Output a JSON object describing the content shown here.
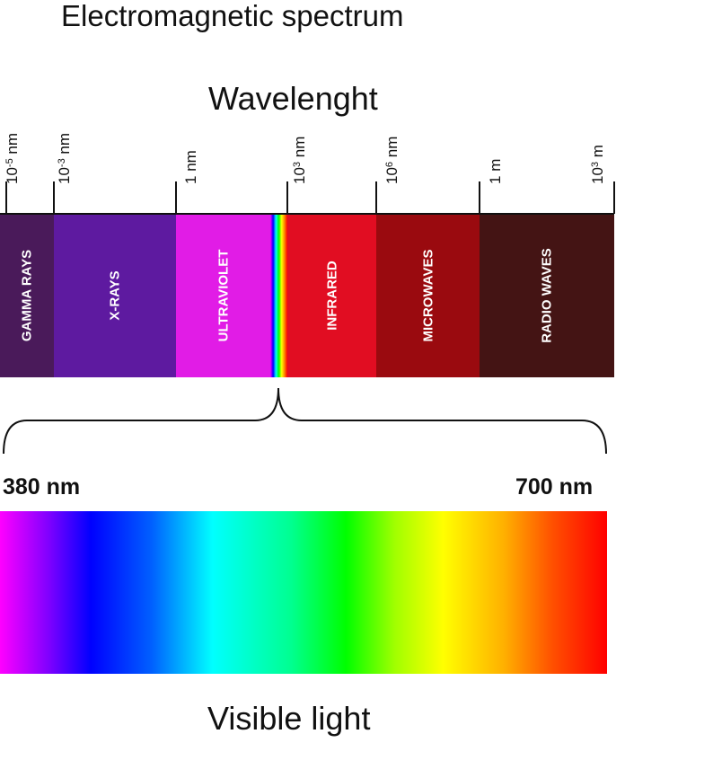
{
  "title": "Electromagnetic spectrum",
  "wavelength_label": "Wavelenght",
  "ticks": [
    {
      "base": "10",
      "exp": "-5",
      "unit": "nm"
    },
    {
      "base": "10",
      "exp": "-3",
      "unit": "nm"
    },
    {
      "base": "1",
      "exp": "",
      "unit": "nm"
    },
    {
      "base": "10",
      "exp": "3",
      "unit": "nm"
    },
    {
      "base": "10",
      "exp": "6",
      "unit": "nm"
    },
    {
      "base": "1",
      "exp": "",
      "unit": "m"
    },
    {
      "base": "10",
      "exp": "3",
      "unit": "m"
    }
  ],
  "bands": [
    {
      "label": "GAMMA RAYS",
      "color": "#4a1a5a"
    },
    {
      "label": "X-RAYS",
      "color": "#5e1aa0"
    },
    {
      "label": "ULTRAVIOLET",
      "color": "#e11ce6"
    },
    {
      "label": "",
      "color": "rainbow"
    },
    {
      "label": "INFRARED",
      "color": "#e10d22"
    },
    {
      "label": "MICROWAVES",
      "color": "#9a0a0f"
    },
    {
      "label": "RADIO WAVES",
      "color": "#441414"
    }
  ],
  "visible_range": {
    "min_label": "380 nm",
    "max_label": "700 nm"
  },
  "visible_caption": "Visible light"
}
